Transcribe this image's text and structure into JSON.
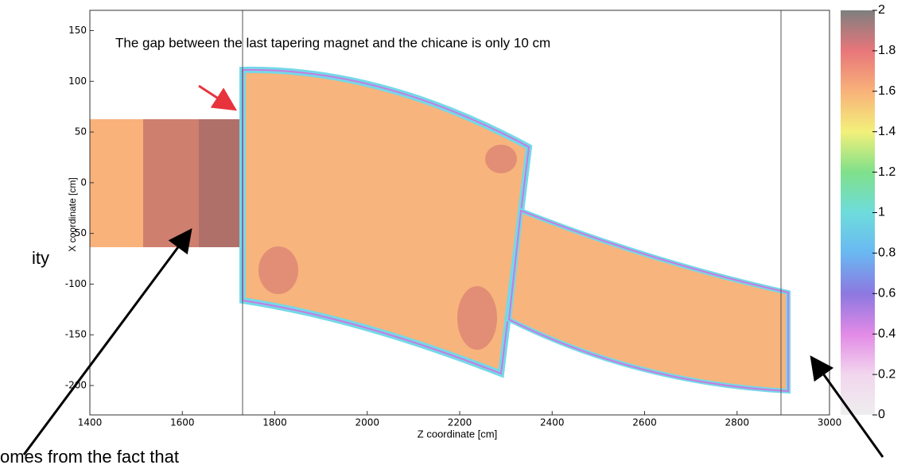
{
  "plot": {
    "annotation": "The gap between the last tapering magnet and the chicane is only 10 cm",
    "xlabel": "Z coordinate [cm]",
    "ylabel": "X coordinate [cm]",
    "xlim": [
      1400,
      3000
    ],
    "ylim": [
      -229,
      170
    ],
    "xticks": [
      1400,
      1600,
      1800,
      2000,
      2200,
      2400,
      2600,
      2800,
      3000
    ],
    "yticks": [
      -200,
      -150,
      -100,
      -50,
      0,
      50,
      100,
      150
    ],
    "colorbar": {
      "lim": [
        0,
        2
      ],
      "ticks": [
        0,
        0.2,
        0.4,
        0.6,
        0.8,
        1,
        1.2,
        1.4,
        1.6,
        1.8,
        2
      ]
    }
  },
  "slide_text": [
    "ity",
    "omes from the fact that"
  ]
}
